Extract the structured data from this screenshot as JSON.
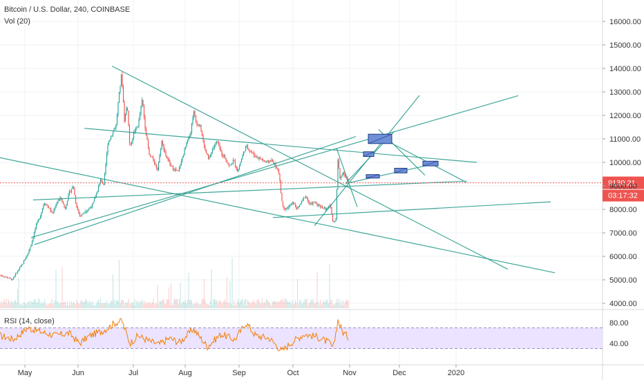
{
  "header": {
    "title": "Bitcoin / U.S. Dollar, 240, COINBASE",
    "volume_label": "Vol (20)",
    "rsi_label": "RSI (14, close)"
  },
  "price_tags": {
    "last_price": "9130.21",
    "countdown": "03:17:32"
  },
  "colors": {
    "trendline": "#2a9d8f",
    "candle_up": "#26a69a",
    "candle_down": "#ef5350",
    "rsi_line": "#f57c00",
    "rsi_band": "#e6dcff",
    "box_fill": "#6f8fd6",
    "box_stroke": "#1f3a8a",
    "price_tag": "#ef5350",
    "grid": "#eef0f3"
  },
  "chart_data": [
    {
      "type": "line",
      "title": "Bitcoin / U.S. Dollar, 240, COINBASE",
      "ylabel": "",
      "ylim": [
        3700,
        16900
      ],
      "y_ticks": [
        "16000.00",
        "15000.00",
        "14000.00",
        "13000.00",
        "12000.00",
        "11000.00",
        "10000.00",
        "9000.00",
        "8000.00",
        "7000.00",
        "6000.00",
        "5000.00",
        "4000.00"
      ],
      "x_ticks": [
        "May",
        "Jun",
        "Jul",
        "Aug",
        "Sep",
        "Oct",
        "Nov",
        "Dec",
        "2020"
      ],
      "last_price": 9130.21,
      "price_anchors": [
        {
          "t": 0,
          "y": 5200
        },
        {
          "t": 10,
          "y": 5100
        },
        {
          "t": 18,
          "y": 5000
        },
        {
          "t": 26,
          "y": 5400
        },
        {
          "t": 33,
          "y": 5700
        },
        {
          "t": 40,
          "y": 6100
        },
        {
          "t": 46,
          "y": 6600
        },
        {
          "t": 52,
          "y": 7300
        },
        {
          "t": 58,
          "y": 7700
        },
        {
          "t": 64,
          "y": 8300
        },
        {
          "t": 70,
          "y": 8100
        },
        {
          "t": 76,
          "y": 7800
        },
        {
          "t": 82,
          "y": 8300
        },
        {
          "t": 88,
          "y": 8500
        },
        {
          "t": 94,
          "y": 8000
        },
        {
          "t": 100,
          "y": 8700
        },
        {
          "t": 106,
          "y": 9000
        },
        {
          "t": 110,
          "y": 8200
        },
        {
          "t": 116,
          "y": 7700
        },
        {
          "t": 122,
          "y": 7900
        },
        {
          "t": 128,
          "y": 8000
        },
        {
          "t": 134,
          "y": 8200
        },
        {
          "t": 140,
          "y": 8700
        },
        {
          "t": 146,
          "y": 9300
        },
        {
          "t": 150,
          "y": 9000
        },
        {
          "t": 156,
          "y": 10800
        },
        {
          "t": 162,
          "y": 11200
        },
        {
          "t": 168,
          "y": 11600
        },
        {
          "t": 172,
          "y": 12800
        },
        {
          "t": 176,
          "y": 13800
        },
        {
          "t": 180,
          "y": 11800
        },
        {
          "t": 184,
          "y": 12500
        },
        {
          "t": 188,
          "y": 10600
        },
        {
          "t": 194,
          "y": 11300
        },
        {
          "t": 200,
          "y": 11600
        },
        {
          "t": 206,
          "y": 12700
        },
        {
          "t": 210,
          "y": 11500
        },
        {
          "t": 216,
          "y": 10300
        },
        {
          "t": 222,
          "y": 10100
        },
        {
          "t": 228,
          "y": 9700
        },
        {
          "t": 234,
          "y": 10900
        },
        {
          "t": 240,
          "y": 10300
        },
        {
          "t": 246,
          "y": 9900
        },
        {
          "t": 252,
          "y": 9700
        },
        {
          "t": 258,
          "y": 9600
        },
        {
          "t": 264,
          "y": 10200
        },
        {
          "t": 270,
          "y": 10800
        },
        {
          "t": 276,
          "y": 11300
        },
        {
          "t": 280,
          "y": 12200
        },
        {
          "t": 284,
          "y": 11700
        },
        {
          "t": 290,
          "y": 11500
        },
        {
          "t": 296,
          "y": 10600
        },
        {
          "t": 302,
          "y": 10100
        },
        {
          "t": 308,
          "y": 10600
        },
        {
          "t": 314,
          "y": 10900
        },
        {
          "t": 320,
          "y": 10400
        },
        {
          "t": 326,
          "y": 10200
        },
        {
          "t": 332,
          "y": 9800
        },
        {
          "t": 338,
          "y": 10100
        },
        {
          "t": 344,
          "y": 9600
        },
        {
          "t": 350,
          "y": 10200
        },
        {
          "t": 356,
          "y": 10700
        },
        {
          "t": 362,
          "y": 10500
        },
        {
          "t": 368,
          "y": 10300
        },
        {
          "t": 374,
          "y": 10200
        },
        {
          "t": 380,
          "y": 10100
        },
        {
          "t": 386,
          "y": 10000
        },
        {
          "t": 392,
          "y": 10100
        },
        {
          "t": 398,
          "y": 9900
        },
        {
          "t": 404,
          "y": 9500
        },
        {
          "t": 408,
          "y": 8300
        },
        {
          "t": 412,
          "y": 8000
        },
        {
          "t": 418,
          "y": 8100
        },
        {
          "t": 424,
          "y": 8300
        },
        {
          "t": 430,
          "y": 8000
        },
        {
          "t": 436,
          "y": 8300
        },
        {
          "t": 442,
          "y": 8600
        },
        {
          "t": 448,
          "y": 8200
        },
        {
          "t": 454,
          "y": 8300
        },
        {
          "t": 460,
          "y": 8200
        },
        {
          "t": 466,
          "y": 8100
        },
        {
          "t": 472,
          "y": 8000
        },
        {
          "t": 478,
          "y": 8200
        },
        {
          "t": 482,
          "y": 7400
        },
        {
          "t": 486,
          "y": 7600
        },
        {
          "t": 489,
          "y": 10100
        },
        {
          "t": 492,
          "y": 9300
        },
        {
          "t": 496,
          "y": 9600
        },
        {
          "t": 500,
          "y": 9400
        },
        {
          "t": 504,
          "y": 9150
        }
      ],
      "trendlines": [
        {
          "x1": 162,
          "y1": 14100,
          "x2": 735,
          "y2": 5450
        },
        {
          "x1": 45,
          "y1": 6800,
          "x2": 750,
          "y2": 12840
        },
        {
          "x1": 50,
          "y1": 6500,
          "x2": 515,
          "y2": 11100
        },
        {
          "x1": 0,
          "y1": 10200,
          "x2": 803,
          "y2": 5300
        },
        {
          "x1": 122,
          "y1": 11450,
          "x2": 690,
          "y2": 10000
        },
        {
          "x1": 48,
          "y1": 8400,
          "x2": 675,
          "y2": 9200
        },
        {
          "x1": 395,
          "y1": 7650,
          "x2": 797,
          "y2": 8320
        },
        {
          "x1": 455,
          "y1": 7300,
          "x2": 607,
          "y2": 12850
        },
        {
          "x1": 487,
          "y1": 10600,
          "x2": 517,
          "y2": 8100
        },
        {
          "x1": 500,
          "y1": 9100,
          "x2": 570,
          "y2": 11300
        },
        {
          "x1": 500,
          "y1": 9100,
          "x2": 623,
          "y2": 9900
        },
        {
          "x1": 548,
          "y1": 11100,
          "x2": 675,
          "y2": 9150
        },
        {
          "x1": 548,
          "y1": 11400,
          "x2": 615,
          "y2": 9450
        }
      ],
      "projection_boxes": [
        {
          "x1": 533,
          "x2": 567,
          "ylo": 10800,
          "yhi": 11200
        },
        {
          "x1": 526,
          "x2": 541,
          "ylo": 10250,
          "yhi": 10450
        },
        {
          "x1": 530,
          "x2": 549,
          "ylo": 9330,
          "yhi": 9480
        },
        {
          "x1": 571,
          "x2": 589,
          "ylo": 9550,
          "yhi": 9750
        },
        {
          "x1": 612,
          "x2": 634,
          "ylo": 9850,
          "yhi": 10050
        }
      ]
    },
    {
      "type": "line",
      "title": "RSI (14, close)",
      "ylim": [
        20,
        90
      ],
      "y_ticks": [
        "80.00",
        "40.00"
      ],
      "band": [
        30,
        70
      ],
      "anchors": [
        {
          "t": 0,
          "v": 55
        },
        {
          "t": 20,
          "v": 48
        },
        {
          "t": 40,
          "v": 70
        },
        {
          "t": 60,
          "v": 62
        },
        {
          "t": 80,
          "v": 55
        },
        {
          "t": 100,
          "v": 60
        },
        {
          "t": 115,
          "v": 40
        },
        {
          "t": 130,
          "v": 55
        },
        {
          "t": 150,
          "v": 65
        },
        {
          "t": 165,
          "v": 78
        },
        {
          "t": 176,
          "v": 85
        },
        {
          "t": 188,
          "v": 40
        },
        {
          "t": 200,
          "v": 55
        },
        {
          "t": 215,
          "v": 45
        },
        {
          "t": 230,
          "v": 38
        },
        {
          "t": 245,
          "v": 50
        },
        {
          "t": 260,
          "v": 42
        },
        {
          "t": 280,
          "v": 68
        },
        {
          "t": 300,
          "v": 34
        },
        {
          "t": 320,
          "v": 58
        },
        {
          "t": 340,
          "v": 47
        },
        {
          "t": 356,
          "v": 80
        },
        {
          "t": 370,
          "v": 55
        },
        {
          "t": 390,
          "v": 50
        },
        {
          "t": 408,
          "v": 25
        },
        {
          "t": 420,
          "v": 40
        },
        {
          "t": 440,
          "v": 58
        },
        {
          "t": 460,
          "v": 52
        },
        {
          "t": 478,
          "v": 40
        },
        {
          "t": 482,
          "v": 28
        },
        {
          "t": 489,
          "v": 85
        },
        {
          "t": 496,
          "v": 62
        },
        {
          "t": 504,
          "v": 52
        }
      ]
    }
  ]
}
